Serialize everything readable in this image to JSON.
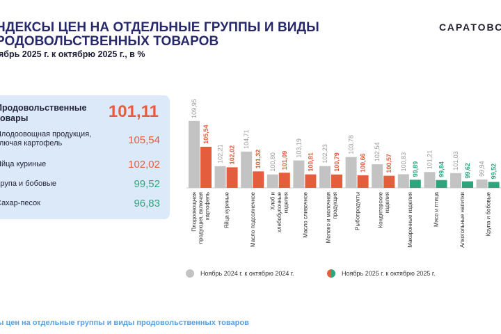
{
  "header": {
    "title_line1": "НДЕКСЫ ЦЕН НА ОТДЕЛЬНЫЕ ГРУППЫ И ВИДЫ",
    "title_line2": "РОДОВОЛЬСТВЕННЫХ ТОВАРОВ",
    "subtitle": "ябрь 2025 г. к октябрю 2025 г., в %",
    "brand": "САРАТОВС"
  },
  "panel": {
    "main": {
      "label_line1": "Продовольственные",
      "label_line2": "товары",
      "value": "101,11"
    },
    "rows": [
      {
        "label_line1": "Плодоовощная продукция,",
        "label_line2": "ключая картофель",
        "value": "105,54",
        "color": "#e45d3c"
      },
      {
        "label_line1": "Яйца куриные",
        "label_line2": "",
        "value": "102,02",
        "color": "#e45d3c"
      },
      {
        "label_line1": "Крупа и бобовые",
        "label_line2": "",
        "value": "99,52",
        "color": "#2fa57d"
      },
      {
        "label_line1": "Сахар-песок",
        "label_line2": "",
        "value": "96,83",
        "color": "#2fa57d"
      }
    ]
  },
  "chart_data": {
    "type": "bar",
    "categories": [
      [
        "Плодоовощная",
        "продукция, включая",
        "картофель"
      ],
      [
        "Яйца куриные"
      ],
      [
        "Масло подсолнечное"
      ],
      [
        "Хлеб и",
        "хлебобулочные",
        "изделия"
      ],
      [
        "Масло сливочное"
      ],
      [
        "Молоко и молочная",
        "продукция"
      ],
      [
        "Рыбопродукты"
      ],
      [
        "Кондитерские",
        "изделия"
      ],
      [
        "Макаронные изделия"
      ],
      [
        "Мясо и птица"
      ],
      [
        "Алкогольные напитки"
      ],
      [
        "Крупа и бобовые"
      ]
    ],
    "series": [
      {
        "name": "Ноябрь 2024 г. к октябрю 2024 г.",
        "values": [
          109.95,
          102.21,
          104.71,
          100.8,
          103.19,
          102.23,
          103.78,
          102.54,
          100.83,
          101.21,
          101.03,
          99.94
        ],
        "labels": [
          "109,95",
          "102,21",
          "104,71",
          "100,80",
          "103,19",
          "102,23",
          "103,78",
          "102,54",
          "100,83",
          "101,21",
          "101,03",
          "99,94"
        ]
      },
      {
        "name": "Ноябрь 2025 г. к октябрю 2025 г.",
        "values": [
          105.54,
          102.02,
          101.32,
          101.09,
          100.81,
          100.79,
          100.66,
          100.57,
          99.89,
          99.84,
          99.62,
          99.52
        ],
        "labels": [
          "105,54",
          "102,02",
          "101,32",
          "101,09",
          "100,81",
          "100,79",
          "100,66",
          "100,57",
          "99,89",
          "99,84",
          "99,62",
          "99,52"
        ]
      }
    ],
    "colors": {
      "previous": "#c3c3c3",
      "increase": "#e45d3c",
      "decrease": "#2fa57d"
    },
    "legend": "bottom"
  },
  "footer": "ы цен на отдельные группы и виды продовольственных товаров"
}
